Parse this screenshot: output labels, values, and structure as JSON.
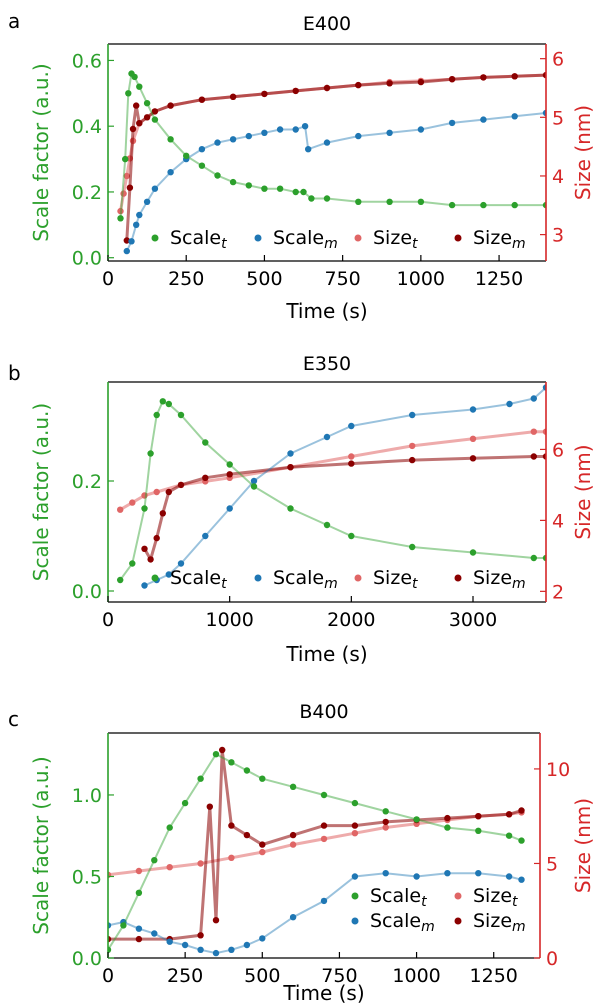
{
  "colors": {
    "scale_t": "#2ca02c",
    "scale_m": "#1f77b4",
    "size_t": "#e06666",
    "size_m": "#8b0000",
    "left_axis": "#2ca02c",
    "right_axis": "#d62728"
  },
  "chart_data": [
    {
      "type": "scatter",
      "panel": "a",
      "title": "E400",
      "xlabel": "Time (s)",
      "ylabel_left": "Scale factor (a.u.)",
      "ylabel_right": "Size (nm)",
      "xlim": [
        0,
        1400
      ],
      "ylim_left": [
        -0.01,
        0.65
      ],
      "ylim_right": [
        2.55,
        6.25
      ],
      "xticks": [
        0,
        250,
        500,
        750,
        1000,
        1250
      ],
      "yticks_left": [
        0.0,
        0.2,
        0.4,
        0.6
      ],
      "yticks_right": [
        3,
        4,
        5,
        6
      ],
      "ytick_labels_left": [
        "0.0",
        "0.2",
        "0.4",
        "0.6"
      ],
      "ytick_labels_right": [
        "3",
        "4",
        "5",
        "6"
      ],
      "legend_position": "bottom",
      "legend": [
        {
          "series": "scale_t",
          "base": "Scale",
          "sub": "t"
        },
        {
          "series": "scale_m",
          "base": "Scale",
          "sub": "m"
        },
        {
          "series": "size_t",
          "base": "Size",
          "sub": "t"
        },
        {
          "series": "size_m",
          "base": "Size",
          "sub": "m"
        }
      ],
      "series": [
        {
          "key": "scale_t",
          "axis": "left",
          "x": [
            40,
            55,
            65,
            75,
            85,
            100,
            125,
            150,
            200,
            250,
            300,
            350,
            400,
            450,
            500,
            550,
            600,
            625,
            650,
            700,
            800,
            900,
            1000,
            1100,
            1200,
            1300,
            1400
          ],
          "y": [
            0.12,
            0.3,
            0.5,
            0.56,
            0.55,
            0.52,
            0.47,
            0.42,
            0.36,
            0.31,
            0.28,
            0.25,
            0.23,
            0.22,
            0.21,
            0.21,
            0.2,
            0.2,
            0.18,
            0.18,
            0.17,
            0.17,
            0.17,
            0.16,
            0.16,
            0.16,
            0.16
          ]
        },
        {
          "key": "scale_m",
          "axis": "left",
          "x": [
            60,
            75,
            90,
            100,
            125,
            150,
            200,
            250,
            300,
            350,
            400,
            450,
            500,
            550,
            600,
            630,
            640,
            700,
            800,
            900,
            1000,
            1100,
            1200,
            1300,
            1400
          ],
          "y": [
            0.02,
            0.05,
            0.1,
            0.13,
            0.17,
            0.21,
            0.26,
            0.3,
            0.33,
            0.35,
            0.36,
            0.37,
            0.38,
            0.39,
            0.39,
            0.4,
            0.33,
            0.35,
            0.37,
            0.38,
            0.39,
            0.41,
            0.42,
            0.43,
            0.44
          ]
        },
        {
          "key": "size_t",
          "axis": "right",
          "x": [
            40,
            50,
            60,
            70,
            80,
            100,
            150,
            200,
            300,
            400,
            500,
            600,
            700,
            800,
            900,
            1000,
            1100,
            1200,
            1300,
            1400
          ],
          "y": [
            3.4,
            3.7,
            4.0,
            4.3,
            4.6,
            4.9,
            5.1,
            5.2,
            5.3,
            5.35,
            5.4,
            5.45,
            5.5,
            5.55,
            5.6,
            5.62,
            5.65,
            5.68,
            5.7,
            5.72
          ]
        },
        {
          "key": "size_m",
          "axis": "right",
          "x": [
            60,
            70,
            80,
            90,
            100,
            125,
            150,
            200,
            300,
            400,
            500,
            600,
            700,
            800,
            900,
            1000,
            1100,
            1200,
            1300,
            1400
          ],
          "y": [
            2.9,
            3.8,
            4.8,
            5.2,
            4.9,
            5.0,
            5.1,
            5.2,
            5.3,
            5.35,
            5.4,
            5.45,
            5.5,
            5.55,
            5.58,
            5.6,
            5.65,
            5.68,
            5.7,
            5.72
          ]
        }
      ]
    },
    {
      "type": "scatter",
      "panel": "b",
      "title": "E350",
      "xlabel": "Time (s)",
      "ylabel_left": "Scale factor (a.u.)",
      "ylabel_right": "Size (nm)",
      "xlim": [
        0,
        3600
      ],
      "ylim_left": [
        -0.02,
        0.38
      ],
      "ylim_right": [
        1.7,
        7.9
      ],
      "xticks": [
        0,
        1000,
        2000,
        3000
      ],
      "yticks_left": [
        0.0,
        0.2
      ],
      "yticks_right": [
        2,
        4,
        6
      ],
      "ytick_labels_left": [
        "0.0",
        "0.2"
      ],
      "ytick_labels_right": [
        "2",
        "4",
        "6"
      ],
      "legend_position": "bottom",
      "legend": [
        {
          "series": "scale_t",
          "base": "Scale",
          "sub": "t"
        },
        {
          "series": "scale_m",
          "base": "Scale",
          "sub": "m"
        },
        {
          "series": "size_t",
          "base": "Size",
          "sub": "t"
        },
        {
          "series": "size_m",
          "base": "Size",
          "sub": "m"
        }
      ],
      "series": [
        {
          "key": "scale_t",
          "axis": "left",
          "x": [
            100,
            200,
            300,
            350,
            400,
            450,
            500,
            600,
            800,
            1000,
            1200,
            1500,
            1800,
            2000,
            2500,
            3000,
            3500,
            3600
          ],
          "y": [
            0.02,
            0.05,
            0.15,
            0.25,
            0.32,
            0.345,
            0.34,
            0.32,
            0.27,
            0.23,
            0.19,
            0.15,
            0.12,
            0.1,
            0.08,
            0.07,
            0.06,
            0.06
          ]
        },
        {
          "key": "scale_m",
          "axis": "left",
          "x": [
            300,
            400,
            500,
            600,
            800,
            1000,
            1200,
            1500,
            1800,
            2000,
            2500,
            3000,
            3300,
            3500,
            3600
          ],
          "y": [
            0.01,
            0.02,
            0.03,
            0.05,
            0.1,
            0.15,
            0.2,
            0.25,
            0.28,
            0.3,
            0.32,
            0.33,
            0.34,
            0.35,
            0.37
          ]
        },
        {
          "key": "size_t",
          "axis": "right",
          "x": [
            100,
            200,
            300,
            400,
            600,
            800,
            1000,
            1500,
            2000,
            2500,
            3000,
            3500,
            3600
          ],
          "y": [
            4.3,
            4.5,
            4.7,
            4.8,
            5.0,
            5.1,
            5.2,
            5.5,
            5.8,
            6.1,
            6.3,
            6.5,
            6.5
          ]
        },
        {
          "key": "size_m",
          "axis": "right",
          "x": [
            300,
            350,
            400,
            450,
            500,
            600,
            800,
            1000,
            1500,
            2000,
            2500,
            3000,
            3500,
            3600
          ],
          "y": [
            3.2,
            2.9,
            3.5,
            4.2,
            4.8,
            5.0,
            5.2,
            5.3,
            5.5,
            5.6,
            5.7,
            5.75,
            5.8,
            5.8
          ]
        }
      ]
    },
    {
      "type": "scatter",
      "panel": "c",
      "title": "B400",
      "xlabel": "Time (s)",
      "ylabel_left": "Scale factor (a.u.)",
      "ylabel_right": "Size (nm)",
      "xlim": [
        0,
        1400
      ],
      "ylim_left": [
        0,
        1.38
      ],
      "ylim_right": [
        0,
        11.9
      ],
      "xticks": [
        0,
        250,
        500,
        750,
        1000,
        1250
      ],
      "yticks_left": [
        0.0,
        0.5,
        1.0
      ],
      "yticks_right": [
        0,
        5,
        10
      ],
      "ytick_labels_left": [
        "0.0",
        "0.5",
        "1.0"
      ],
      "ytick_labels_right": [
        "0",
        "5",
        "10"
      ],
      "legend_position": "bottom-right",
      "legend": [
        {
          "series": "scale_t",
          "base": "Scale",
          "sub": "t"
        },
        {
          "series": "size_t",
          "base": "Size",
          "sub": "t"
        },
        {
          "series": "scale_m",
          "base": "Scale",
          "sub": "m"
        },
        {
          "series": "size_m",
          "base": "Size",
          "sub": "m"
        }
      ],
      "series": [
        {
          "key": "scale_t",
          "axis": "left",
          "x": [
            0,
            50,
            100,
            150,
            200,
            250,
            300,
            350,
            400,
            450,
            500,
            600,
            700,
            800,
            900,
            1000,
            1100,
            1200,
            1300,
            1340
          ],
          "y": [
            0.05,
            0.2,
            0.4,
            0.6,
            0.8,
            0.95,
            1.1,
            1.25,
            1.2,
            1.15,
            1.1,
            1.05,
            1.0,
            0.95,
            0.9,
            0.85,
            0.8,
            0.78,
            0.75,
            0.72
          ]
        },
        {
          "key": "scale_m",
          "axis": "left",
          "x": [
            0,
            50,
            100,
            150,
            200,
            250,
            300,
            350,
            400,
            450,
            500,
            600,
            700,
            800,
            900,
            1000,
            1100,
            1200,
            1300,
            1340
          ],
          "y": [
            0.2,
            0.22,
            0.18,
            0.15,
            0.1,
            0.08,
            0.05,
            0.03,
            0.05,
            0.08,
            0.12,
            0.25,
            0.35,
            0.5,
            0.52,
            0.5,
            0.52,
            0.52,
            0.5,
            0.48
          ]
        },
        {
          "key": "size_t",
          "axis": "right",
          "x": [
            0,
            100,
            200,
            300,
            400,
            500,
            600,
            700,
            800,
            900,
            1000,
            1100,
            1200,
            1300,
            1340
          ],
          "y": [
            4.4,
            4.6,
            4.8,
            5.0,
            5.3,
            5.6,
            6.0,
            6.3,
            6.6,
            6.9,
            7.1,
            7.3,
            7.5,
            7.6,
            7.7
          ]
        },
        {
          "key": "size_m",
          "axis": "right",
          "x": [
            0,
            100,
            200,
            300,
            330,
            350,
            370,
            400,
            450,
            500,
            600,
            700,
            800,
            900,
            1000,
            1100,
            1200,
            1300,
            1340
          ],
          "y": [
            1.0,
            1.0,
            1.0,
            1.2,
            8.0,
            2.0,
            11.0,
            7.0,
            6.5,
            6.0,
            6.5,
            7.0,
            7.0,
            7.2,
            7.3,
            7.4,
            7.5,
            7.6,
            7.8
          ]
        }
      ]
    }
  ]
}
